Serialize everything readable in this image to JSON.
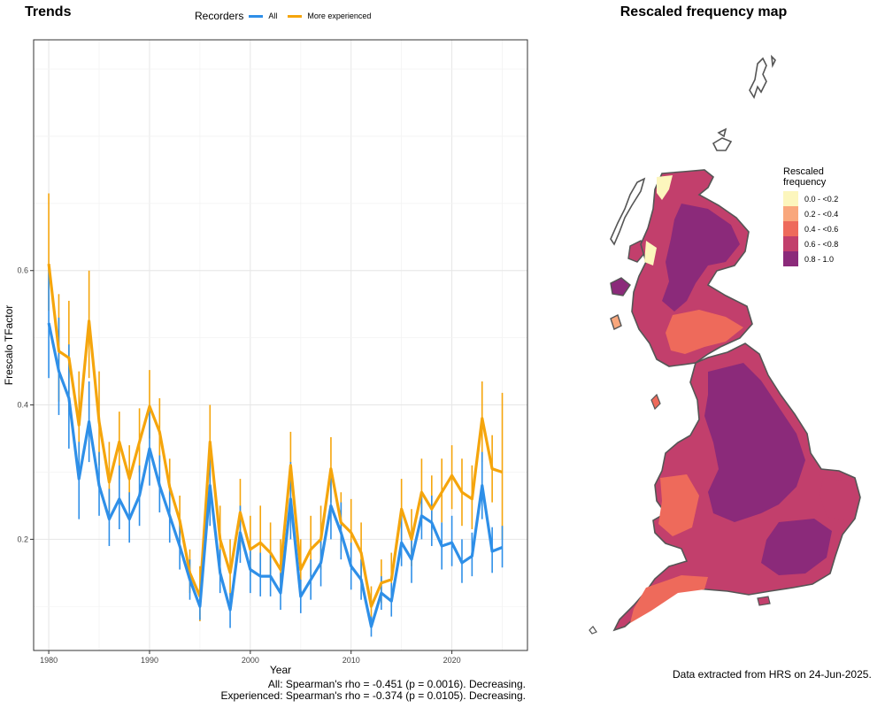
{
  "titles": {
    "trends": "Trends",
    "map": "Rescaled frequency map"
  },
  "legend": {
    "title": "Recorders",
    "all": "All",
    "experienced": "More experienced",
    "all_color": "#2E8FE8",
    "exp_color": "#F5A50C"
  },
  "chart_data": {
    "type": "line",
    "xlabel": "Year",
    "ylabel": "Frescalo TFactor",
    "xlim": [
      1978.5,
      2027.5
    ],
    "ylim": [
      0.0345,
      0.9435
    ],
    "xticks": [
      1980,
      1990,
      2000,
      2010,
      2020
    ],
    "yticks": [
      0.2,
      0.4,
      0.6
    ],
    "grid": true,
    "legend_position": "top",
    "x": [
      1980,
      1981,
      1982,
      1983,
      1984,
      1985,
      1986,
      1987,
      1988,
      1989,
      1990,
      1991,
      1992,
      1993,
      1994,
      1995,
      1996,
      1997,
      1998,
      1999,
      2000,
      2001,
      2002,
      2003,
      2004,
      2005,
      2006,
      2007,
      2008,
      2009,
      2010,
      2011,
      2012,
      2013,
      2014,
      2015,
      2016,
      2017,
      2018,
      2019,
      2020,
      2021,
      2022,
      2023,
      2024,
      2025
    ],
    "series": [
      {
        "name": "All",
        "values": [
          0.522,
          0.45,
          0.41,
          0.29,
          0.375,
          0.28,
          0.23,
          0.26,
          0.23,
          0.265,
          0.335,
          0.28,
          0.235,
          0.19,
          0.14,
          0.1,
          0.28,
          0.15,
          0.095,
          0.21,
          0.155,
          0.145,
          0.145,
          0.12,
          0.26,
          0.115,
          0.14,
          0.165,
          0.25,
          0.21,
          0.16,
          0.14,
          0.07,
          0.12,
          0.108,
          0.195,
          0.17,
          0.235,
          0.225,
          0.19,
          0.195,
          0.165,
          0.175,
          0.28,
          0.182,
          0.188
        ],
        "err": [
          [
            0.44,
            0.605
          ],
          [
            0.385,
            0.53
          ],
          [
            0.335,
            0.49
          ],
          [
            0.23,
            0.345
          ],
          [
            0.315,
            0.435
          ],
          [
            0.235,
            0.33
          ],
          [
            0.19,
            0.275
          ],
          [
            0.215,
            0.31
          ],
          [
            0.195,
            0.27
          ],
          [
            0.22,
            0.31
          ],
          [
            0.28,
            0.395
          ],
          [
            0.24,
            0.325
          ],
          [
            0.195,
            0.275
          ],
          [
            0.155,
            0.225
          ],
          [
            0.11,
            0.17
          ],
          [
            0.08,
            0.125
          ],
          [
            0.22,
            0.34
          ],
          [
            0.12,
            0.185
          ],
          [
            0.068,
            0.12
          ],
          [
            0.165,
            0.25
          ],
          [
            0.12,
            0.19
          ],
          [
            0.115,
            0.18
          ],
          [
            0.115,
            0.18
          ],
          [
            0.095,
            0.15
          ],
          [
            0.2,
            0.315
          ],
          [
            0.09,
            0.14
          ],
          [
            0.11,
            0.17
          ],
          [
            0.13,
            0.2
          ],
          [
            0.2,
            0.3
          ],
          [
            0.17,
            0.255
          ],
          [
            0.125,
            0.195
          ],
          [
            0.11,
            0.17
          ],
          [
            0.055,
            0.085
          ],
          [
            0.095,
            0.145
          ],
          [
            0.085,
            0.135
          ],
          [
            0.16,
            0.235
          ],
          [
            0.135,
            0.205
          ],
          [
            0.2,
            0.27
          ],
          [
            0.19,
            0.265
          ],
          [
            0.155,
            0.225
          ],
          [
            0.16,
            0.235
          ],
          [
            0.135,
            0.2
          ],
          [
            0.145,
            0.21
          ],
          [
            0.23,
            0.33
          ],
          [
            0.15,
            0.218
          ],
          [
            0.158,
            0.22
          ]
        ]
      },
      {
        "name": "More experienced",
        "values": [
          0.61,
          0.48,
          0.47,
          0.37,
          0.525,
          0.375,
          0.285,
          0.345,
          0.29,
          0.345,
          0.398,
          0.36,
          0.278,
          0.228,
          0.15,
          0.115,
          0.345,
          0.2,
          0.15,
          0.24,
          0.185,
          0.195,
          0.18,
          0.155,
          0.31,
          0.155,
          0.185,
          0.2,
          0.305,
          0.225,
          0.21,
          0.18,
          0.1,
          0.135,
          0.14,
          0.245,
          0.2,
          0.27,
          0.245,
          0.27,
          0.295,
          0.27,
          0.26,
          0.38,
          0.305,
          0.3
        ],
        "err": [
          [
            0.54,
            0.715
          ],
          [
            0.405,
            0.565
          ],
          [
            0.39,
            0.555
          ],
          [
            0.3,
            0.45
          ],
          [
            0.44,
            0.6
          ],
          [
            0.31,
            0.45
          ],
          [
            0.24,
            0.345
          ],
          [
            0.29,
            0.39
          ],
          [
            0.245,
            0.34
          ],
          [
            0.3,
            0.395
          ],
          [
            0.35,
            0.452
          ],
          [
            0.315,
            0.41
          ],
          [
            0.24,
            0.32
          ],
          [
            0.195,
            0.265
          ],
          [
            0.12,
            0.185
          ],
          [
            0.078,
            0.16
          ],
          [
            0.275,
            0.4
          ],
          [
            0.155,
            0.25
          ],
          [
            0.11,
            0.2
          ],
          [
            0.185,
            0.29
          ],
          [
            0.145,
            0.235
          ],
          [
            0.15,
            0.25
          ],
          [
            0.14,
            0.225
          ],
          [
            0.12,
            0.2
          ],
          [
            0.26,
            0.36
          ],
          [
            0.12,
            0.2
          ],
          [
            0.145,
            0.235
          ],
          [
            0.155,
            0.25
          ],
          [
            0.255,
            0.352
          ],
          [
            0.18,
            0.27
          ],
          [
            0.165,
            0.26
          ],
          [
            0.14,
            0.225
          ],
          [
            0.075,
            0.13
          ],
          [
            0.105,
            0.17
          ],
          [
            0.11,
            0.18
          ],
          [
            0.2,
            0.29
          ],
          [
            0.16,
            0.245
          ],
          [
            0.225,
            0.32
          ],
          [
            0.2,
            0.295
          ],
          [
            0.225,
            0.32
          ],
          [
            0.245,
            0.34
          ],
          [
            0.22,
            0.32
          ],
          [
            0.215,
            0.31
          ],
          [
            0.315,
            0.435
          ],
          [
            0.255,
            0.355
          ],
          [
            0.2,
            0.418
          ]
        ]
      }
    ]
  },
  "stats": {
    "all": "All: Spearman's rho = -0.451 (p = 0.0016). Decreasing.",
    "experienced": "Experienced: Spearman's rho = -0.374 (p = 0.0105). Decreasing."
  },
  "map_legend": {
    "title_line1": "Rescaled",
    "title_line2": "frequency",
    "items": [
      {
        "label": "0.0 - <0.2",
        "color": "#FCF6BD"
      },
      {
        "label": "0.2 - <0.4",
        "color": "#F9A77C"
      },
      {
        "label": "0.4 - <0.6",
        "color": "#EE6A5B"
      },
      {
        "label": "0.6 - <0.8",
        "color": "#C23F6C"
      },
      {
        "label": "0.8 - 1.0",
        "color": "#8B2A7A"
      }
    ]
  },
  "extraction_note": "Data extracted from HRS on 24-Jun-2025."
}
